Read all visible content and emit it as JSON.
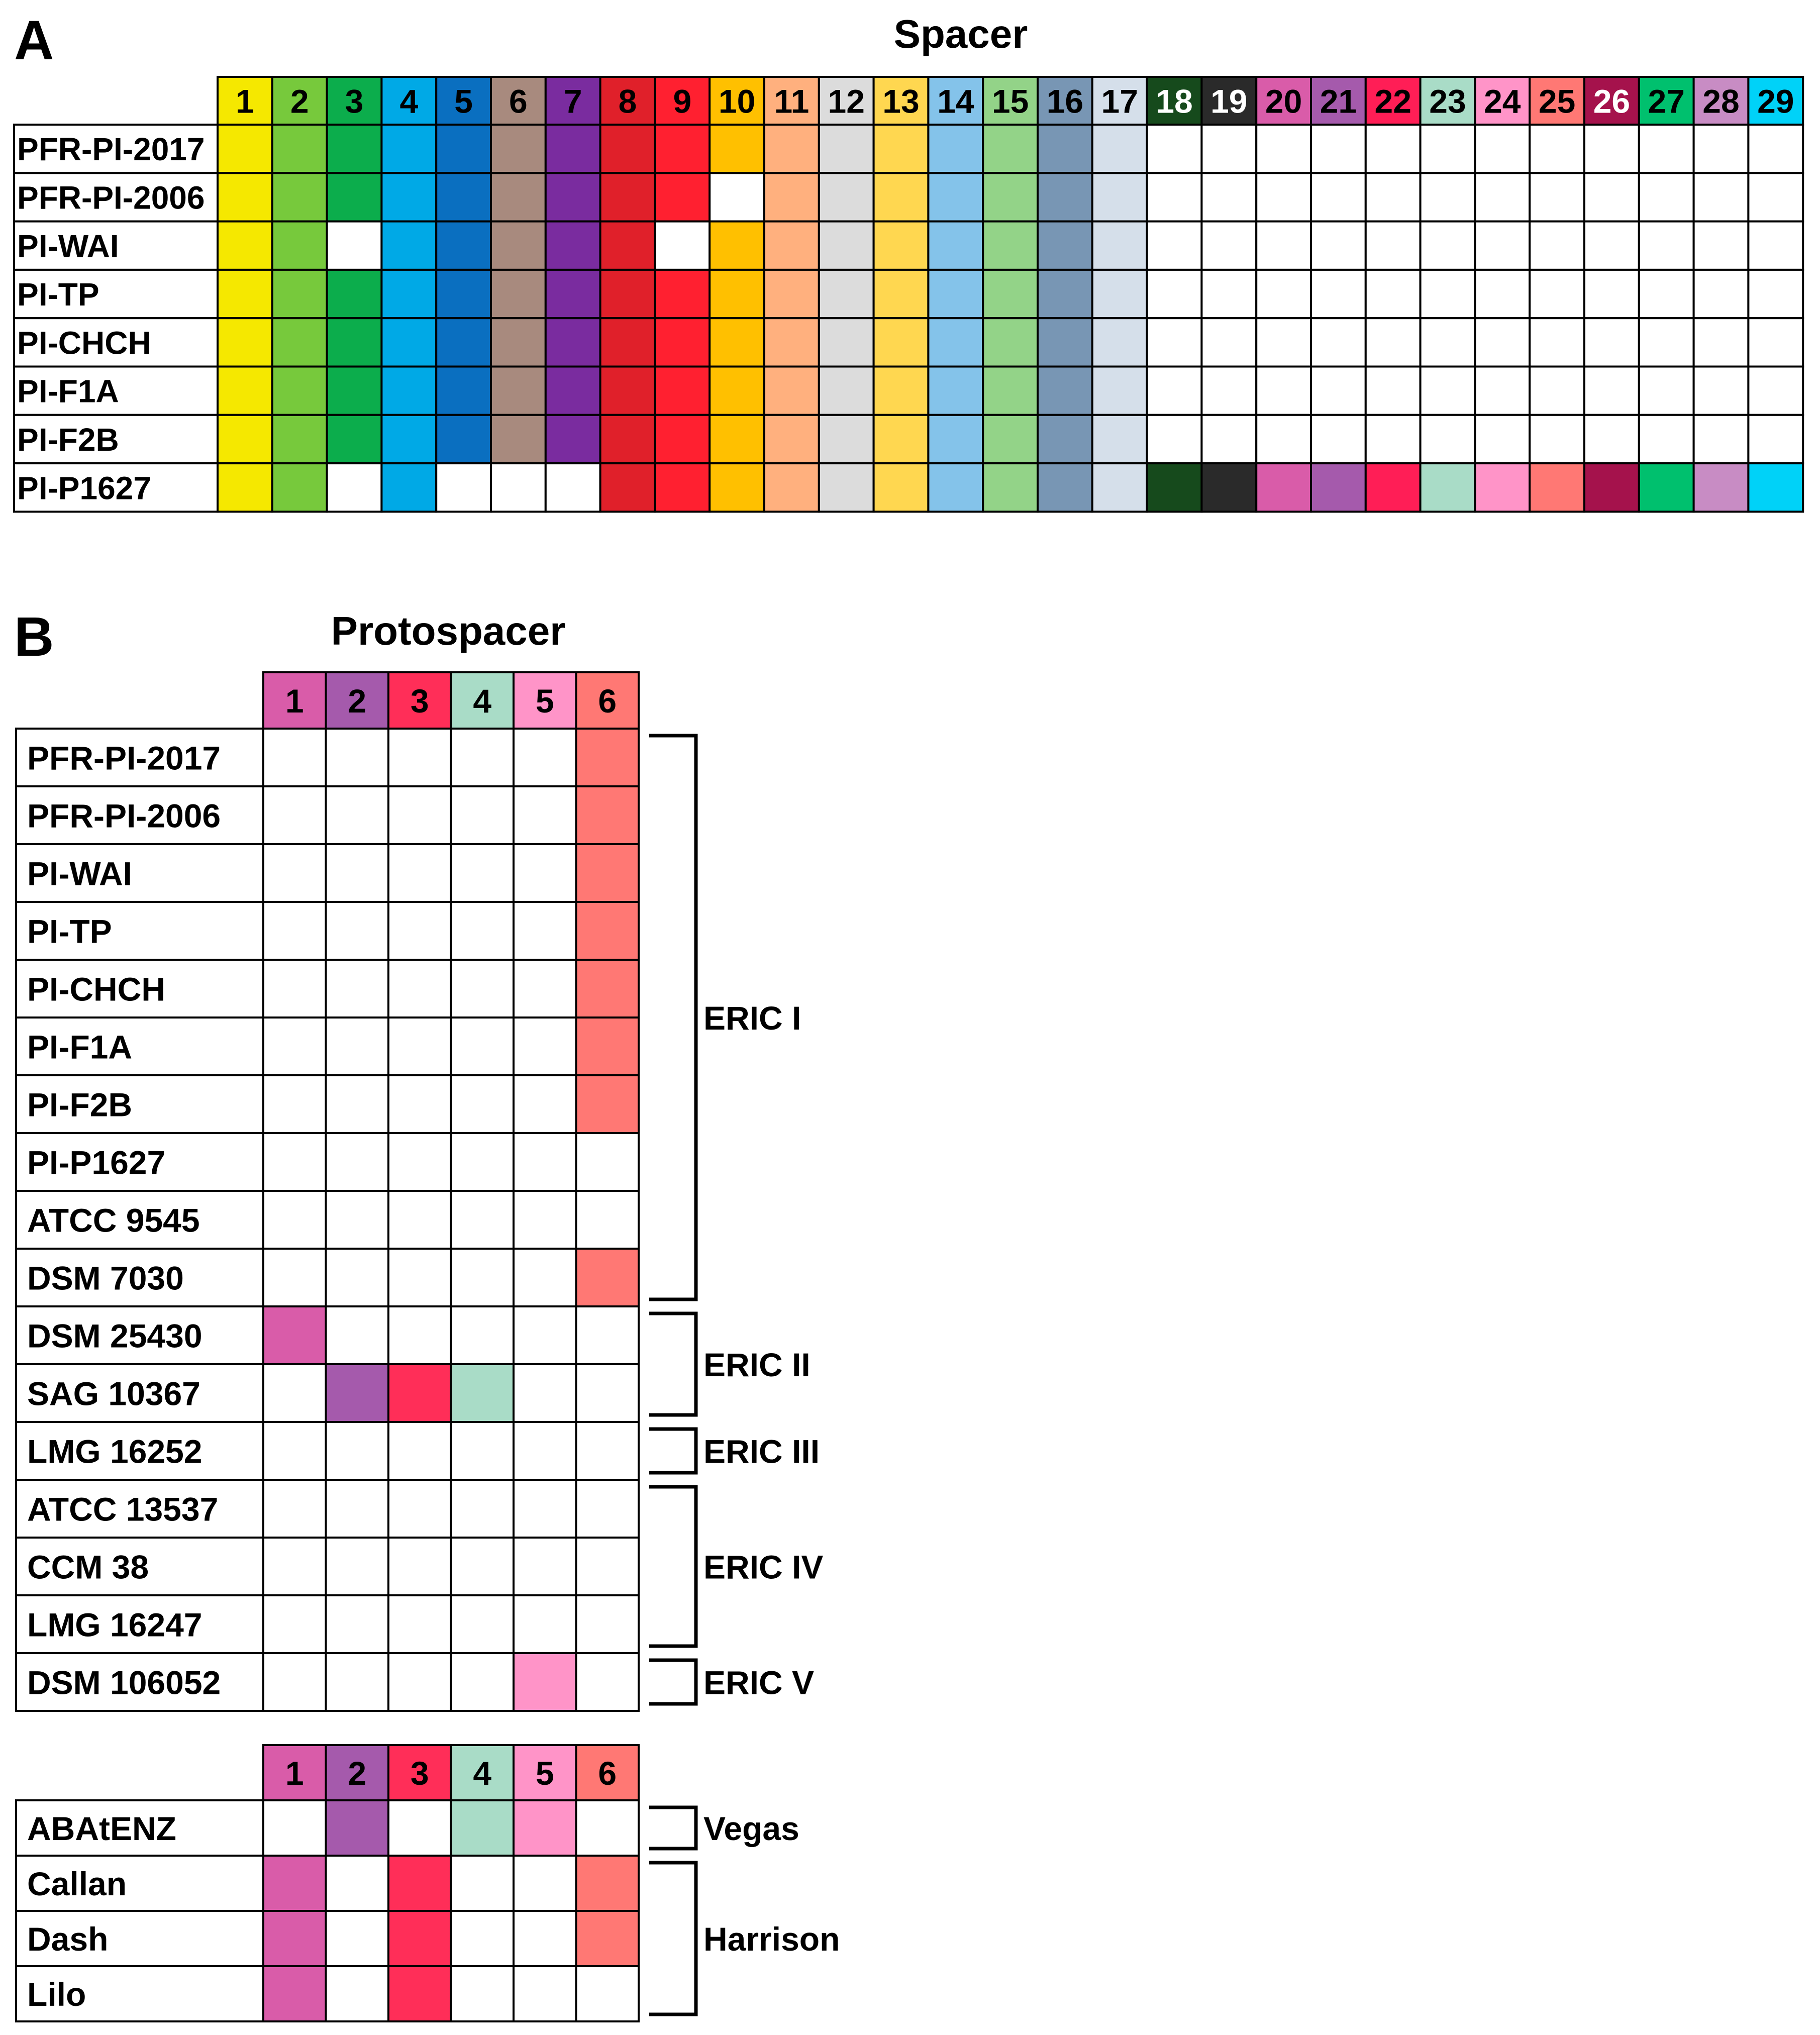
{
  "panel_a": {
    "letter": "A",
    "title": "Spacer",
    "columns": [
      {
        "label": "1",
        "color": "#f5e800",
        "label_color": "#000000"
      },
      {
        "label": "2",
        "color": "#77c93c",
        "label_color": "#000000"
      },
      {
        "label": "3",
        "color": "#0cad4c",
        "label_color": "#000000"
      },
      {
        "label": "4",
        "color": "#00a9e6",
        "label_color": "#000000"
      },
      {
        "label": "5",
        "color": "#0a6fc0",
        "label_color": "#000000"
      },
      {
        "label": "6",
        "color": "#a88a7e",
        "label_color": "#000000"
      },
      {
        "label": "7",
        "color": "#7a2c9f",
        "label_color": "#000000"
      },
      {
        "label": "8",
        "color": "#e0202a",
        "label_color": "#000000"
      },
      {
        "label": "9",
        "color": "#ff2030",
        "label_color": "#000000"
      },
      {
        "label": "10",
        "color": "#ffc000",
        "label_color": "#000000"
      },
      {
        "label": "11",
        "color": "#ffb07e",
        "label_color": "#000000"
      },
      {
        "label": "12",
        "color": "#dcdcdc",
        "label_color": "#000000"
      },
      {
        "label": "13",
        "color": "#ffd750",
        "label_color": "#000000"
      },
      {
        "label": "14",
        "color": "#84c3ea",
        "label_color": "#000000"
      },
      {
        "label": "15",
        "color": "#93d388",
        "label_color": "#000000"
      },
      {
        "label": "16",
        "color": "#7896b4",
        "label_color": "#000000"
      },
      {
        "label": "17",
        "color": "#d5dfea",
        "label_color": "#000000"
      },
      {
        "label": "18",
        "color": "#164a1c",
        "label_color": "#ffffff"
      },
      {
        "label": "19",
        "color": "#2a2a2a",
        "label_color": "#ffffff"
      },
      {
        "label": "20",
        "color": "#d95ca9",
        "label_color": "#000000"
      },
      {
        "label": "21",
        "color": "#a55aac",
        "label_color": "#000000"
      },
      {
        "label": "22",
        "color": "#ff1e56",
        "label_color": "#000000"
      },
      {
        "label": "23",
        "color": "#a9dcc7",
        "label_color": "#000000"
      },
      {
        "label": "24",
        "color": "#ff94c8",
        "label_color": "#000000"
      },
      {
        "label": "25",
        "color": "#ff7874",
        "label_color": "#000000"
      },
      {
        "label": "26",
        "color": "#a5124c",
        "label_color": "#ffffff"
      },
      {
        "label": "27",
        "color": "#00c06e",
        "label_color": "#000000"
      },
      {
        "label": "28",
        "color": "#c88cc4",
        "label_color": "#000000"
      },
      {
        "label": "29",
        "color": "#00d2f8",
        "label_color": "#000000"
      }
    ],
    "rows": [
      {
        "label": "PFR-PI-2017",
        "present": [
          1,
          1,
          1,
          1,
          1,
          1,
          1,
          1,
          1,
          1,
          1,
          1,
          1,
          1,
          1,
          1,
          1,
          0,
          0,
          0,
          0,
          0,
          0,
          0,
          0,
          0,
          0,
          0,
          0
        ]
      },
      {
        "label": "PFR-PI-2006",
        "present": [
          1,
          1,
          1,
          1,
          1,
          1,
          1,
          1,
          1,
          0,
          1,
          1,
          1,
          1,
          1,
          1,
          1,
          0,
          0,
          0,
          0,
          0,
          0,
          0,
          0,
          0,
          0,
          0,
          0
        ]
      },
      {
        "label": "PI-WAI",
        "present": [
          1,
          1,
          0,
          1,
          1,
          1,
          1,
          1,
          0,
          1,
          1,
          1,
          1,
          1,
          1,
          1,
          1,
          0,
          0,
          0,
          0,
          0,
          0,
          0,
          0,
          0,
          0,
          0,
          0
        ]
      },
      {
        "label": "PI-TP",
        "present": [
          1,
          1,
          1,
          1,
          1,
          1,
          1,
          1,
          1,
          1,
          1,
          1,
          1,
          1,
          1,
          1,
          1,
          0,
          0,
          0,
          0,
          0,
          0,
          0,
          0,
          0,
          0,
          0,
          0
        ]
      },
      {
        "label": "PI-CHCH",
        "present": [
          1,
          1,
          1,
          1,
          1,
          1,
          1,
          1,
          1,
          1,
          1,
          1,
          1,
          1,
          1,
          1,
          1,
          0,
          0,
          0,
          0,
          0,
          0,
          0,
          0,
          0,
          0,
          0,
          0
        ]
      },
      {
        "label": "PI-F1A",
        "present": [
          1,
          1,
          1,
          1,
          1,
          1,
          1,
          1,
          1,
          1,
          1,
          1,
          1,
          1,
          1,
          1,
          1,
          0,
          0,
          0,
          0,
          0,
          0,
          0,
          0,
          0,
          0,
          0,
          0
        ]
      },
      {
        "label": "PI-F2B",
        "present": [
          1,
          1,
          1,
          1,
          1,
          1,
          1,
          1,
          1,
          1,
          1,
          1,
          1,
          1,
          1,
          1,
          1,
          0,
          0,
          0,
          0,
          0,
          0,
          0,
          0,
          0,
          0,
          0,
          0
        ]
      },
      {
        "label": "PI-P1627",
        "present": [
          1,
          1,
          0,
          1,
          0,
          0,
          0,
          1,
          1,
          1,
          1,
          1,
          1,
          1,
          1,
          1,
          1,
          1,
          1,
          1,
          1,
          1,
          1,
          1,
          1,
          1,
          1,
          1,
          1
        ]
      }
    ]
  },
  "panel_b": {
    "letter": "B",
    "title": "Protospacer",
    "columns": [
      {
        "label": "1",
        "color": "#d95ca9"
      },
      {
        "label": "2",
        "color": "#a55aac"
      },
      {
        "label": "3",
        "color": "#ff2e58"
      },
      {
        "label": "4",
        "color": "#a9dcc7"
      },
      {
        "label": "5",
        "color": "#ff94c8"
      },
      {
        "label": "6",
        "color": "#ff7874"
      }
    ],
    "strain_rows": [
      {
        "label": "PFR-PI-2017",
        "present": [
          0,
          0,
          0,
          0,
          0,
          1
        ]
      },
      {
        "label": "PFR-PI-2006",
        "present": [
          0,
          0,
          0,
          0,
          0,
          1
        ]
      },
      {
        "label": "PI-WAI",
        "present": [
          0,
          0,
          0,
          0,
          0,
          1
        ]
      },
      {
        "label": "PI-TP",
        "present": [
          0,
          0,
          0,
          0,
          0,
          1
        ]
      },
      {
        "label": "PI-CHCH",
        "present": [
          0,
          0,
          0,
          0,
          0,
          1
        ]
      },
      {
        "label": "PI-F1A",
        "present": [
          0,
          0,
          0,
          0,
          0,
          1
        ]
      },
      {
        "label": "PI-F2B",
        "present": [
          0,
          0,
          0,
          0,
          0,
          1
        ]
      },
      {
        "label": "PI-P1627",
        "present": [
          0,
          0,
          0,
          0,
          0,
          0
        ]
      },
      {
        "label": "ATCC 9545",
        "present": [
          0,
          0,
          0,
          0,
          0,
          0
        ]
      },
      {
        "label": "DSM 7030",
        "present": [
          0,
          0,
          0,
          0,
          0,
          1
        ]
      },
      {
        "label": "DSM 25430",
        "present": [
          1,
          0,
          0,
          0,
          0,
          0
        ]
      },
      {
        "label": "SAG 10367",
        "present": [
          0,
          1,
          1,
          1,
          0,
          0
        ]
      },
      {
        "label": "LMG 16252",
        "present": [
          0,
          0,
          0,
          0,
          0,
          0
        ]
      },
      {
        "label": "ATCC 13537",
        "present": [
          0,
          0,
          0,
          0,
          0,
          0
        ]
      },
      {
        "label": "CCM 38",
        "present": [
          0,
          0,
          0,
          0,
          0,
          0
        ]
      },
      {
        "label": "LMG 16247",
        "present": [
          0,
          0,
          0,
          0,
          0,
          0
        ]
      },
      {
        "label": "DSM 106052",
        "present": [
          0,
          0,
          0,
          0,
          1,
          0
        ]
      }
    ],
    "strain_groups": [
      {
        "label": "ERIC I",
        "first_row": 0,
        "last_row": 9
      },
      {
        "label": "ERIC II",
        "first_row": 10,
        "last_row": 11
      },
      {
        "label": "ERIC III",
        "first_row": 12,
        "last_row": 12
      },
      {
        "label": "ERIC IV",
        "first_row": 13,
        "last_row": 15
      },
      {
        "label": "ERIC V",
        "first_row": 16,
        "last_row": 16
      }
    ],
    "phage_rows": [
      {
        "label": "ABAtENZ",
        "present": [
          0,
          1,
          0,
          1,
          1,
          0
        ]
      },
      {
        "label": "Callan",
        "present": [
          1,
          0,
          1,
          0,
          0,
          1
        ]
      },
      {
        "label": "Dash",
        "present": [
          1,
          0,
          1,
          0,
          0,
          1
        ]
      },
      {
        "label": "Lilo",
        "present": [
          1,
          0,
          1,
          0,
          0,
          0
        ]
      }
    ],
    "phage_groups": [
      {
        "label": "Vegas",
        "first_row": 0,
        "last_row": 0
      },
      {
        "label": "Harrison",
        "first_row": 1,
        "last_row": 3
      }
    ]
  }
}
